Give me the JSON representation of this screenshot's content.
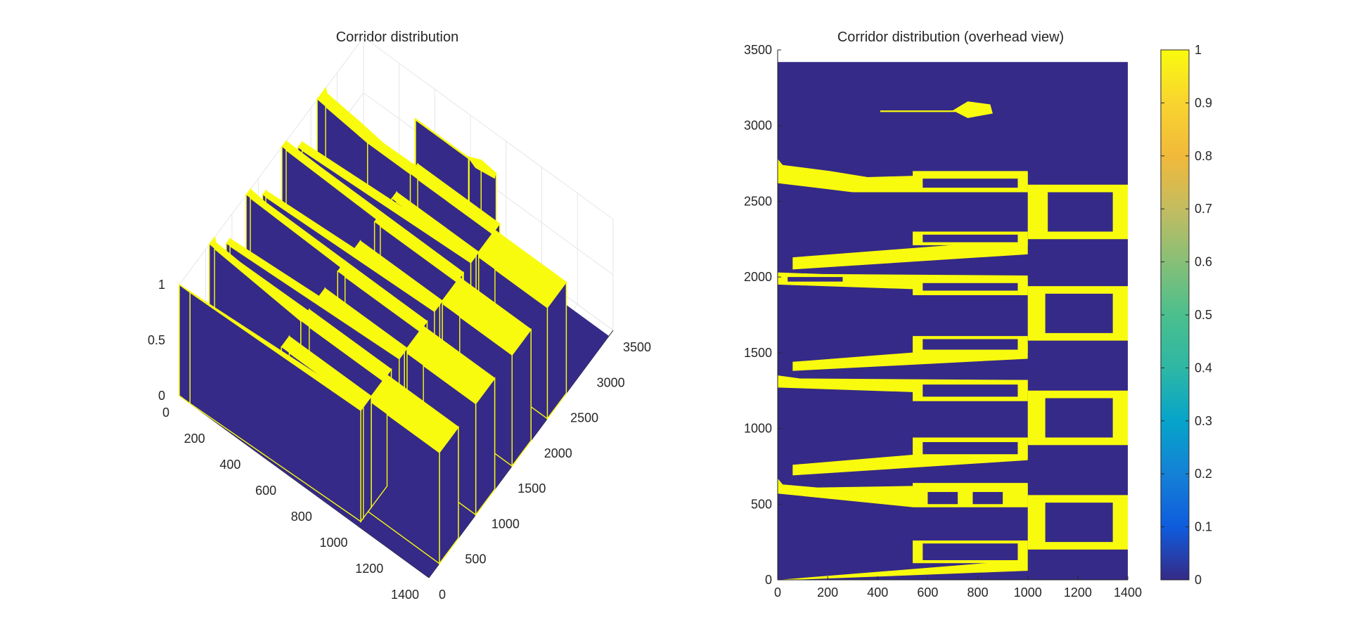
{
  "figure": {
    "window_title": ""
  },
  "chart_data": [
    {
      "type": "surface3d",
      "title": "Corridor distribution",
      "x_ticks": [
        "0",
        "200",
        "400",
        "600",
        "800",
        "1000",
        "1200",
        "1400"
      ],
      "y_ticks": [
        "0",
        "500",
        "1000",
        "1500",
        "2000",
        "2500",
        "3000",
        "3500"
      ],
      "z_ticks": [
        "0",
        "0.5",
        "1"
      ],
      "xlim": [
        0,
        1400
      ],
      "ylim": [
        0,
        3500
      ],
      "zlim": [
        0,
        1
      ],
      "grid": true,
      "values_description": "binary corridor map (0 = background, 1 = corridor), same data as overhead view"
    },
    {
      "type": "heatmap",
      "title": "Corridor distribution (overhead view)",
      "x_ticks": [
        "0",
        "200",
        "400",
        "600",
        "800",
        "1000",
        "1200",
        "1400"
      ],
      "y_ticks": [
        "0",
        "500",
        "1000",
        "1500",
        "2000",
        "2500",
        "3000",
        "3500"
      ],
      "xlim": [
        0,
        1400
      ],
      "ylim": [
        0,
        3500
      ],
      "data_extent": {
        "x": [
          0,
          1400
        ],
        "y": [
          0,
          3420
        ]
      },
      "colorbar_ticks": [
        "0",
        "0.1",
        "0.2",
        "0.3",
        "0.4",
        "0.5",
        "0.6",
        "0.7",
        "0.8",
        "0.9",
        "1"
      ],
      "clim": [
        0,
        1
      ],
      "colormap": "parula",
      "colors": {
        "low": "#352a87",
        "high": "#f9fb0e"
      },
      "corridor_polygons": [
        {
          "name": "spine-top-left",
          "pts": [
            [
              0,
              2780
            ],
            [
              20,
              2740
            ],
            [
              210,
              2700
            ],
            [
              360,
              2660
            ],
            [
              1000,
              2690
            ],
            [
              1000,
              2560
            ],
            [
              300,
              2560
            ],
            [
              0,
              2620
            ]
          ]
        },
        {
          "name": "block-top-upper",
          "pts": [
            [
              540,
              2700
            ],
            [
              1000,
              2700
            ],
            [
              1000,
              2560
            ],
            [
              540,
              2560
            ]
          ]
        },
        {
          "name": "block-top-lower",
          "pts": [
            [
              540,
              2300
            ],
            [
              1000,
              2300
            ],
            [
              1000,
              2210
            ],
            [
              540,
              2210
            ]
          ]
        },
        {
          "name": "wedge-top-lower",
          "pts": [
            [
              60,
              2130
            ],
            [
              1000,
              2250
            ],
            [
              1000,
              2150
            ],
            [
              60,
              2050
            ]
          ]
        },
        {
          "name": "hub-top",
          "pts": [
            [
              1000,
              2610
            ],
            [
              1400,
              2610
            ],
            [
              1400,
              2250
            ],
            [
              1000,
              2250
            ]
          ]
        },
        {
          "name": "spine-mid-upper",
          "pts": [
            [
              0,
              2030
            ],
            [
              180,
              2020
            ],
            [
              1000,
              2010
            ],
            [
              1000,
              1920
            ],
            [
              540,
              1920
            ],
            [
              0,
              1950
            ]
          ]
        },
        {
          "name": "block-mid-upper",
          "pts": [
            [
              540,
              1990
            ],
            [
              1000,
              1990
            ],
            [
              1000,
              1880
            ],
            [
              540,
              1880
            ]
          ]
        },
        {
          "name": "block-mid-lower",
          "pts": [
            [
              540,
              1610
            ],
            [
              1000,
              1610
            ],
            [
              1000,
              1500
            ],
            [
              540,
              1500
            ]
          ]
        },
        {
          "name": "wedge-mid-lower",
          "pts": [
            [
              60,
              1440
            ],
            [
              1000,
              1560
            ],
            [
              1000,
              1460
            ],
            [
              60,
              1380
            ]
          ]
        },
        {
          "name": "hub-mid",
          "pts": [
            [
              1000,
              1940
            ],
            [
              1400,
              1940
            ],
            [
              1400,
              1580
            ],
            [
              1000,
              1580
            ]
          ]
        },
        {
          "name": "spine-low-upper",
          "pts": [
            [
              0,
              1350
            ],
            [
              90,
              1330
            ],
            [
              1000,
              1320
            ],
            [
              1000,
              1240
            ],
            [
              540,
              1240
            ],
            [
              0,
              1270
            ]
          ]
        },
        {
          "name": "block-low-upper",
          "pts": [
            [
              540,
              1320
            ],
            [
              1000,
              1320
            ],
            [
              1000,
              1180
            ],
            [
              540,
              1180
            ]
          ]
        },
        {
          "name": "block-low-lower",
          "pts": [
            [
              540,
              940
            ],
            [
              1000,
              940
            ],
            [
              1000,
              800
            ],
            [
              540,
              800
            ]
          ]
        },
        {
          "name": "wedge-low-lower",
          "pts": [
            [
              60,
              760
            ],
            [
              1000,
              890
            ],
            [
              1000,
              790
            ],
            [
              60,
              690
            ]
          ]
        },
        {
          "name": "hub-low",
          "pts": [
            [
              1000,
              1250
            ],
            [
              1400,
              1250
            ],
            [
              1400,
              890
            ],
            [
              1000,
              890
            ]
          ]
        },
        {
          "name": "spine-bot-upper",
          "pts": [
            [
              0,
              670
            ],
            [
              20,
              630
            ],
            [
              160,
              610
            ],
            [
              540,
              620
            ],
            [
              1000,
              620
            ],
            [
              1000,
              480
            ],
            [
              540,
              480
            ],
            [
              0,
              570
            ]
          ]
        },
        {
          "name": "block-bot-upper",
          "pts": [
            [
              540,
              640
            ],
            [
              1000,
              640
            ],
            [
              1000,
              480
            ],
            [
              540,
              480
            ]
          ]
        },
        {
          "name": "block-bot-lower",
          "pts": [
            [
              540,
              260
            ],
            [
              1000,
              260
            ],
            [
              1000,
              110
            ],
            [
              540,
              110
            ]
          ]
        },
        {
          "name": "wedge-bot-lower",
          "pts": [
            [
              0,
              0
            ],
            [
              980,
              130
            ],
            [
              1000,
              110
            ],
            [
              1000,
              60
            ],
            [
              60,
              0
            ]
          ]
        },
        {
          "name": "hub-bot",
          "pts": [
            [
              1000,
              560
            ],
            [
              1400,
              560
            ],
            [
              1400,
              200
            ],
            [
              1000,
              200
            ]
          ]
        },
        {
          "name": "top-line",
          "pts": [
            [
              410,
              3100
            ],
            [
              710,
              3100
            ],
            [
              710,
              3090
            ],
            [
              410,
              3090
            ]
          ]
        },
        {
          "name": "top-diamond",
          "pts": [
            [
              700,
              3100
            ],
            [
              760,
              3050
            ],
            [
              860,
              3080
            ],
            [
              850,
              3140
            ],
            [
              760,
              3160
            ]
          ]
        }
      ],
      "background_holes": [
        {
          "name": "hole-top-hub",
          "pts": [
            [
              1080,
              2560
            ],
            [
              1340,
              2560
            ],
            [
              1340,
              2300
            ],
            [
              1080,
              2300
            ]
          ]
        },
        {
          "name": "hole-top-upper-a",
          "pts": [
            [
              580,
              2650
            ],
            [
              960,
              2650
            ],
            [
              960,
              2590
            ],
            [
              580,
              2590
            ]
          ]
        },
        {
          "name": "hole-top-lower-a",
          "pts": [
            [
              580,
              2280
            ],
            [
              960,
              2280
            ],
            [
              960,
              2230
            ],
            [
              580,
              2230
            ]
          ]
        },
        {
          "name": "hole-mid-hub",
          "pts": [
            [
              1070,
              1890
            ],
            [
              1340,
              1890
            ],
            [
              1340,
              1630
            ],
            [
              1070,
              1630
            ]
          ]
        },
        {
          "name": "hole-mid-upper-a",
          "pts": [
            [
              580,
              1960
            ],
            [
              960,
              1960
            ],
            [
              960,
              1910
            ],
            [
              580,
              1910
            ]
          ]
        },
        {
          "name": "hole-mid-lower-a",
          "pts": [
            [
              580,
              1590
            ],
            [
              960,
              1590
            ],
            [
              960,
              1520
            ],
            [
              580,
              1520
            ]
          ]
        },
        {
          "name": "hole-low-hub",
          "pts": [
            [
              1070,
              1200
            ],
            [
              1340,
              1200
            ],
            [
              1340,
              940
            ],
            [
              1070,
              940
            ]
          ]
        },
        {
          "name": "hole-low-upper-a",
          "pts": [
            [
              580,
              1290
            ],
            [
              960,
              1290
            ],
            [
              960,
              1210
            ],
            [
              580,
              1210
            ]
          ]
        },
        {
          "name": "hole-low-lower-a",
          "pts": [
            [
              580,
              910
            ],
            [
              960,
              910
            ],
            [
              960,
              830
            ],
            [
              580,
              830
            ]
          ]
        },
        {
          "name": "hole-bot-hub",
          "pts": [
            [
              1070,
              510
            ],
            [
              1340,
              510
            ],
            [
              1340,
              250
            ],
            [
              1070,
              250
            ]
          ]
        },
        {
          "name": "hole-bot-rect-1",
          "pts": [
            [
              600,
              580
            ],
            [
              720,
              580
            ],
            [
              720,
              500
            ],
            [
              600,
              500
            ]
          ]
        },
        {
          "name": "hole-bot-rect-2",
          "pts": [
            [
              780,
              580
            ],
            [
              900,
              580
            ],
            [
              900,
              500
            ],
            [
              780,
              500
            ]
          ]
        },
        {
          "name": "hole-bot-lower-a",
          "pts": [
            [
              580,
              240
            ],
            [
              960,
              240
            ],
            [
              960,
              130
            ],
            [
              580,
              130
            ]
          ]
        },
        {
          "name": "hole-mid-upper-left",
          "pts": [
            [
              40,
              2000
            ],
            [
              260,
              2000
            ],
            [
              260,
              1970
            ],
            [
              40,
              1970
            ]
          ]
        }
      ]
    }
  ]
}
